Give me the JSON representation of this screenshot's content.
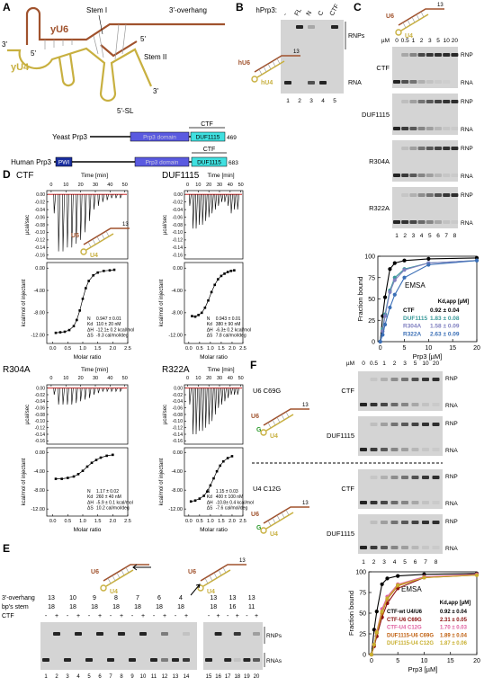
{
  "A": {
    "letter": "A",
    "rna": {
      "u6": "yU6",
      "u4": "yU4",
      "stem1": "Stem I",
      "stem2": "Stem II",
      "overhang": "3'-overhang",
      "sl": "5'-SL",
      "ends": [
        "3'",
        "5'",
        "5'",
        "3'"
      ]
    },
    "domains": [
      {
        "name": "Yeast Prp3",
        "boxes": [
          "Prp3 domain",
          "DUF1115"
        ],
        "ctf": "CTF",
        "length": "469"
      },
      {
        "name": "Human Prp3",
        "boxes": [
          "PWI",
          "Prp3 domain",
          "DUF1115"
        ],
        "ctf": "CTF",
        "length": "683"
      }
    ]
  },
  "B": {
    "letter": "B",
    "label": "hPrp3:",
    "lanes": [
      "-",
      "FL",
      "N",
      "C",
      "CTF"
    ],
    "right": [
      "RNPs",
      "RNA"
    ],
    "rna": {
      "u6": "hU6",
      "u4": "hU4",
      "overhang": "13"
    },
    "lane_numbers": [
      1,
      2,
      3,
      4,
      5
    ]
  },
  "C": {
    "letter": "C",
    "rna": {
      "u6": "U6",
      "u4": "U4",
      "overhang": "13"
    },
    "unit": "µM",
    "concentrations": [
      0,
      0.5,
      1,
      2,
      3,
      5,
      10,
      20
    ],
    "gels": [
      "CTF",
      "DUF1115",
      "R304A",
      "R322A"
    ],
    "rnp": "RNP",
    "rna_label": "RNA",
    "lane_numbers": [
      1,
      2,
      3,
      4,
      5,
      6,
      7,
      8
    ],
    "chart": {
      "type": "line",
      "title": "EMSA",
      "x_label": "Prp3 [µM]",
      "y_label": "Fraction bound",
      "legend_title": "Kd,app [µM]",
      "x": [
        0,
        0.5,
        1,
        2,
        3,
        5,
        10,
        20
      ],
      "xlim": [
        -0.5,
        20
      ],
      "ylim": [
        0,
        100
      ],
      "xticks": [
        0,
        5,
        10,
        15,
        20
      ],
      "yticks": [
        0,
        25,
        50,
        75,
        100
      ],
      "series": [
        {
          "name": "CTF",
          "color": "#000000",
          "kd": "0.92 ± 0.04",
          "values": [
            0,
            30,
            52,
            85,
            92,
            95,
            97,
            98
          ]
        },
        {
          "name": "DUF1115",
          "color": "#3a9a9a",
          "kd": "1.83 ± 0.08",
          "values": [
            0,
            15,
            32,
            60,
            75,
            85,
            92,
            95
          ]
        },
        {
          "name": "R304A",
          "color": "#8080c0",
          "kd": "1.58 ± 0.09",
          "values": [
            0,
            12,
            30,
            58,
            72,
            84,
            92,
            95
          ]
        },
        {
          "name": "R322A",
          "color": "#3b6fb6",
          "kd": "2.63 ± 0.09",
          "values": [
            0,
            8,
            20,
            40,
            55,
            75,
            90,
            95
          ]
        }
      ]
    }
  },
  "D": {
    "letter": "D",
    "plots": [
      {
        "name": "CTF",
        "time_label": "Time [min]",
        "upper_label": "µcal/sec",
        "lower_label": "kcal/mol of injectant",
        "x_label": "Molar ratio",
        "rna": {
          "u6": "U6",
          "u4": "U4",
          "overhang": "13"
        },
        "time_lim": [
          -3,
          52
        ],
        "time_ticks": [
          0,
          10,
          20,
          30,
          40,
          50
        ],
        "upper_lim": [
          -0.17,
          0.01
        ],
        "upper_ticks": [
          {
            "value": 0,
            "label": "0.00"
          },
          -0.02,
          -0.04,
          -0.06,
          -0.08,
          {
            "value": -0.1,
            "label": "-0.10"
          },
          -0.12,
          -0.14,
          -0.16
        ],
        "peak_times": [
          2,
          5,
          8,
          11,
          14,
          17,
          20,
          23,
          26,
          29,
          32,
          35,
          38,
          41,
          44,
          47
        ],
        "peak_heights": [
          -0.05,
          -0.15,
          -0.15,
          -0.14,
          -0.14,
          -0.13,
          -0.12,
          -0.1,
          -0.07,
          -0.04,
          -0.03,
          -0.02,
          -0.015,
          -0.01,
          -0.01,
          -0.01
        ],
        "ratio_lim": [
          -0.2,
          2.5
        ],
        "ratio_ticks": [
          {
            "value": 0,
            "label": "0.0"
          },
          0.5,
          {
            "value": 1,
            "label": "1.0"
          },
          1.5,
          {
            "value": 2,
            "label": "2.0"
          },
          2.5
        ],
        "lower_lim": [
          -13.5,
          1
        ],
        "lower_ticks": [
          {
            "value": 0,
            "label": "0.00"
          },
          {
            "value": -4,
            "label": "-4.00"
          },
          {
            "value": -8,
            "label": "-8.00"
          },
          {
            "value": -12,
            "label": "-12.00"
          }
        ],
        "ratio": [
          0.1,
          0.25,
          0.4,
          0.55,
          0.7,
          0.8,
          0.9,
          1.0,
          1.1,
          1.2,
          1.35,
          1.5,
          1.7,
          1.9,
          2.05
        ],
        "heat": [
          -11.6,
          -11.5,
          -11.4,
          -11.1,
          -10.4,
          -9.3,
          -7.6,
          -5.5,
          -3.6,
          -2.3,
          -1.3,
          -0.8,
          -0.5,
          -0.4,
          -0.3
        ],
        "params": [
          {
            "label": "N",
            "value": "0.947 ± 0.01"
          },
          {
            "label": "Kd",
            "value": "110 ± 20 nM"
          },
          {
            "label": "ΔH",
            "value": "-12.1± 0.2 kcal/mol"
          },
          {
            "label": "ΔS",
            "value": "-9.3 cal/mol/deg"
          }
        ]
      },
      {
        "name": "DUF1115",
        "time_label": "Time [min]",
        "upper_label": "µcal/sec",
        "lower_label": "kcal/mol of injectant",
        "x_label": "Molar ratio",
        "time_lim": [
          -3,
          52
        ],
        "time_ticks": [
          0,
          10,
          20,
          30,
          40,
          50
        ],
        "upper_lim": [
          -0.17,
          0.01
        ],
        "upper_ticks": [
          {
            "value": 0,
            "label": "0.00"
          },
          -0.02,
          -0.04,
          -0.06,
          -0.08,
          {
            "value": -0.1,
            "label": "-0.10"
          },
          -0.12,
          -0.14,
          -0.16
        ],
        "peak_times": [
          2,
          5,
          8,
          11,
          14,
          17,
          20,
          23,
          26,
          29,
          32,
          35,
          38,
          41,
          44,
          47
        ],
        "peak_heights": [
          -0.03,
          -0.09,
          -0.09,
          -0.08,
          -0.08,
          -0.07,
          -0.06,
          -0.05,
          -0.04,
          -0.03,
          -0.02,
          -0.02,
          -0.03,
          -0.05,
          -0.04,
          -0.04
        ],
        "ratio_lim": [
          -0.2,
          2.5
        ],
        "ratio_ticks": [
          {
            "value": 0,
            "label": "0.0"
          },
          0.5,
          {
            "value": 1,
            "label": "1.0"
          },
          1.5,
          {
            "value": 2,
            "label": "2.0"
          },
          2.5
        ],
        "lower_lim": [
          -13.5,
          1
        ],
        "lower_ticks": [
          {
            "value": 0,
            "label": "0.00"
          },
          {
            "value": -4,
            "label": "-4.00"
          },
          {
            "value": -8,
            "label": "-8.00"
          },
          {
            "value": -12,
            "label": "-12.00"
          }
        ],
        "ratio": [
          0.15,
          0.3,
          0.45,
          0.6,
          0.75,
          0.9,
          1.05,
          1.2,
          1.35,
          1.5,
          1.65,
          1.8,
          1.95,
          2.1
        ],
        "heat": [
          -8.6,
          -8.7,
          -8.4,
          -8.0,
          -7.1,
          -5.8,
          -4.3,
          -3.0,
          -2.0,
          -1.4,
          -1.0,
          -0.7,
          -0.5,
          -0.4
        ],
        "params": [
          {
            "label": "N",
            "value": "0.943 ± 0.01"
          },
          {
            "label": "Kd",
            "value": "380 ± 90 nM"
          },
          {
            "label": "ΔH",
            "value": "-6.3± 0.2 kcal/mol"
          },
          {
            "label": "ΔS",
            "value": "7.8 cal/mol/deg"
          }
        ]
      },
      {
        "name": "R304A",
        "time_label": "Time [min]",
        "upper_label": "µcal/sec",
        "lower_label": "kcal/mol of injectant",
        "x_label": "Molar ratio",
        "time_lim": [
          -3,
          52
        ],
        "time_ticks": [
          0,
          10,
          20,
          30,
          40,
          50
        ],
        "upper_lim": [
          -0.17,
          0.01
        ],
        "upper_ticks": [
          {
            "value": 0,
            "label": "0.00"
          },
          -0.02,
          -0.04,
          -0.06,
          -0.08,
          {
            "value": -0.1,
            "label": "-0.10"
          },
          -0.12,
          -0.14,
          -0.16
        ],
        "peak_times": [
          2,
          5,
          8,
          11,
          14,
          17,
          20,
          23,
          26,
          29,
          32,
          35,
          38,
          41,
          44,
          47
        ],
        "peak_heights": [
          -0.02,
          -0.05,
          -0.05,
          -0.05,
          -0.05,
          -0.045,
          -0.04,
          -0.035,
          -0.03,
          -0.02,
          -0.015,
          -0.01,
          -0.01,
          -0.01,
          -0.01,
          -0.01
        ],
        "ratio_lim": [
          -0.2,
          2.5
        ],
        "ratio_ticks": [
          {
            "value": 0,
            "label": "0.0"
          },
          0.5,
          {
            "value": 1,
            "label": "1.0"
          },
          1.5,
          {
            "value": 2,
            "label": "2.0"
          },
          2.5
        ],
        "lower_lim": [
          -13.5,
          1
        ],
        "lower_ticks": [
          {
            "value": 0,
            "label": "0.00"
          },
          {
            "value": -4,
            "label": "-4.00"
          },
          {
            "value": -8,
            "label": "-8.00"
          },
          {
            "value": -12,
            "label": "-12.00"
          }
        ],
        "ratio": [
          0.1,
          0.3,
          0.5,
          0.7,
          0.85,
          1.0,
          1.15,
          1.3,
          1.45,
          1.6,
          1.8,
          2.0
        ],
        "heat": [
          -5.6,
          -5.6,
          -5.4,
          -5.1,
          -4.6,
          -3.9,
          -3.0,
          -2.2,
          -1.6,
          -1.1,
          -0.7,
          -0.5
        ],
        "params": [
          {
            "label": "N",
            "value": "1.17 ± 0.02"
          },
          {
            "label": "Kd",
            "value": "260 ± 40 nM"
          },
          {
            "label": "ΔH",
            "value": "-5.9 ± 0.1 kcal/mol"
          },
          {
            "label": "ΔS",
            "value": "10.2 cal/mol/deg"
          }
        ]
      },
      {
        "name": "R322A",
        "time_label": "Time [min]",
        "upper_label": "µcal/sec",
        "lower_label": "kcal/mol of injectant",
        "x_label": "Molar ratio",
        "time_lim": [
          -3,
          52
        ],
        "time_ticks": [
          0,
          10,
          20,
          30,
          40,
          50
        ],
        "upper_lim": [
          -0.17,
          0.01
        ],
        "upper_ticks": [
          {
            "value": 0,
            "label": "0.00"
          },
          -0.02,
          -0.04,
          -0.06,
          -0.08,
          {
            "value": -0.1,
            "label": "-0.10"
          },
          -0.12,
          -0.14,
          -0.16
        ],
        "peak_times": [
          2,
          5,
          8,
          11,
          14,
          17,
          20,
          23,
          26,
          29,
          32,
          35,
          38,
          41,
          44,
          47
        ],
        "peak_heights": [
          -0.05,
          -0.14,
          -0.14,
          -0.13,
          -0.13,
          -0.12,
          -0.11,
          -0.1,
          -0.08,
          -0.06,
          -0.05,
          -0.04,
          -0.03,
          -0.02,
          -0.02,
          -0.02
        ],
        "ratio_lim": [
          -0.2,
          2.5
        ],
        "ratio_ticks": [
          {
            "value": 0,
            "label": "0.0"
          },
          0.5,
          {
            "value": 1,
            "label": "1.0"
          },
          1.5,
          {
            "value": 2,
            "label": "2.0"
          },
          2.5
        ],
        "lower_lim": [
          -13.5,
          1
        ],
        "lower_ticks": [
          {
            "value": 0,
            "label": "0.00"
          },
          {
            "value": -4,
            "label": "-4.00"
          },
          {
            "value": -8,
            "label": "-8.00"
          },
          {
            "value": -12,
            "label": "-12.00"
          }
        ],
        "ratio": [
          0.1,
          0.3,
          0.5,
          0.7,
          0.85,
          1.0,
          1.15,
          1.3,
          1.45,
          1.6,
          1.8,
          2.0
        ],
        "heat": [
          -10.4,
          -10.2,
          -9.8,
          -9.2,
          -8.3,
          -7.0,
          -5.5,
          -4.0,
          -2.8,
          -1.9,
          -1.2,
          -0.8
        ],
        "params": [
          {
            "label": "N",
            "value": "1.15 ± 0.03"
          },
          {
            "label": "Kd",
            "value": "400 ± 100 nM"
          },
          {
            "label": "ΔH",
            "value": "-10.8± 0.4 kcal/mol"
          },
          {
            "label": "ΔS",
            "value": "-7.6 cal/mol/deg"
          }
        ]
      }
    ]
  },
  "E": {
    "letter": "E",
    "rna": [
      {
        "u6": "U6",
        "u4": "U4"
      },
      {
        "u6": "U6",
        "u4": "U4",
        "overhang": "13"
      }
    ],
    "rows": [
      "3'-overhang",
      "bp's stem",
      "CTF"
    ],
    "overhang": [
      13,
      10,
      9,
      8,
      7,
      6,
      4,
      13,
      13,
      13
    ],
    "stem": [
      18,
      18,
      18,
      18,
      18,
      18,
      18,
      18,
      16,
      11
    ],
    "ctf": [
      "-",
      "+"
    ],
    "lane_numbers": [
      1,
      2,
      3,
      4,
      5,
      6,
      7,
      8,
      9,
      10,
      11,
      12,
      13,
      14,
      15,
      16,
      17,
      18,
      19,
      20
    ],
    "right": [
      "RNPs",
      "RNAs"
    ]
  },
  "F": {
    "letter": "F",
    "unit": "µM",
    "concentrations": [
      0,
      0.5,
      1,
      2,
      3,
      5,
      10,
      20
    ],
    "groups": [
      {
        "name": "U6 C69G",
        "u6": "U6",
        "u4": "U4",
        "overhang": "13",
        "mut": "G",
        "gels": [
          "CTF",
          "DUF1115"
        ]
      },
      {
        "name": "U4 C12G",
        "u6": "U6",
        "u4": "U4",
        "overhang": "13",
        "mut": "G",
        "gels": [
          "CTF",
          "DUF1115"
        ]
      }
    ],
    "rnp": "RNP",
    "rna_label": "RNA",
    "lane_numbers": [
      1,
      2,
      3,
      4,
      5,
      6,
      7,
      8
    ],
    "chart": {
      "type": "line",
      "title": "EMSA",
      "x_label": "Prp3 [µM]",
      "y_label": "Fraction bound",
      "legend_title": "Kd,app [µM]",
      "x": [
        0,
        0.5,
        1,
        2,
        3,
        5,
        10,
        20
      ],
      "xlim": [
        -0.5,
        20
      ],
      "ylim": [
        0,
        100
      ],
      "xticks": [
        0,
        5,
        10,
        15,
        20
      ],
      "yticks": [
        0,
        25,
        50,
        75,
        100
      ],
      "series": [
        {
          "name": "CTF-wt U4/U6",
          "color": "#000000",
          "kd": "0.92 ± 0.04",
          "values": [
            0,
            30,
            52,
            85,
            92,
            95,
            97,
            98
          ]
        },
        {
          "name": "CTF-U6 C69G",
          "color": "#8b1010",
          "kd": "2.31 ± 0.05",
          "values": [
            0,
            10,
            22,
            45,
            62,
            80,
            93,
            97
          ]
        },
        {
          "name": "CTF-U4 C12G",
          "color": "#e060a0",
          "kd": "1.70 ± 0.03",
          "values": [
            0,
            12,
            28,
            55,
            70,
            85,
            94,
            97
          ]
        },
        {
          "name": "DUF1115-U6 C69G",
          "color": "#c06010",
          "kd": "1.89 ± 0.04",
          "values": [
            0,
            12,
            26,
            50,
            67,
            83,
            93,
            96
          ]
        },
        {
          "name": "DUF1115-U4 C12G",
          "color": "#c8b030",
          "kd": "1.87 ± 0.06",
          "values": [
            0,
            12,
            27,
            52,
            68,
            84,
            93,
            96
          ]
        }
      ]
    }
  }
}
